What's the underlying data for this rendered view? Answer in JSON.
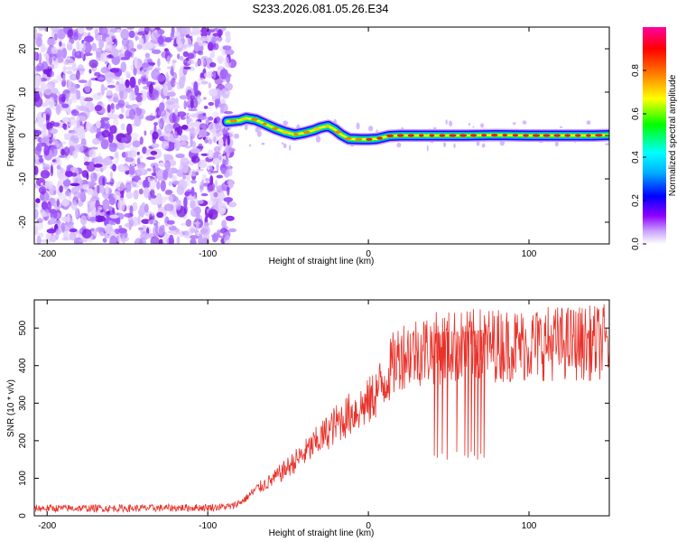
{
  "title": "S233.2026.081.05.26.E34",
  "chart_data": [
    {
      "type": "heatmap",
      "title": "S233.2026.081.05.26.E34",
      "xlabel": "Height of straight line (km)",
      "ylabel": "Frequency (Hz)",
      "xlim": [
        -208,
        150
      ],
      "ylim": [
        -25,
        25
      ],
      "x_ticks": [
        -200,
        -100,
        0,
        100
      ],
      "x_tick_labels": [
        "-200",
        "-100",
        "0",
        "100"
      ],
      "y_ticks": [
        -20,
        -10,
        0,
        10,
        20
      ],
      "y_tick_labels": [
        "-20",
        "-10",
        "0",
        "10",
        "20"
      ],
      "noise_region_x": [
        -208,
        -88
      ],
      "ridge_line": {
        "x": [
          -88,
          -80,
          -76,
          -70,
          -64,
          -58,
          -52,
          -46,
          -40,
          -34,
          -30,
          -25,
          -21,
          -17,
          -12,
          -5,
          0,
          5,
          13,
          20,
          40,
          60,
          80,
          100,
          120,
          140,
          150
        ],
        "y": [
          3.2,
          3.5,
          4.0,
          3.6,
          2.6,
          1.6,
          0.8,
          0.2,
          0.6,
          1.2,
          1.8,
          2.2,
          1.4,
          0.2,
          -0.8,
          -0.9,
          -0.9,
          -0.8,
          -0.1,
          0.0,
          0.0,
          0.0,
          0.1,
          0.0,
          0.0,
          0.0,
          0.1
        ]
      },
      "colorbar": {
        "label": "Normalized spectral amplitude",
        "range": [
          0,
          1
        ],
        "ticks": [
          0.0,
          0.2,
          0.4,
          0.6,
          0.8
        ],
        "tick_labels": [
          "0.0",
          "0.2",
          "0.4",
          "0.6",
          "0.8"
        ],
        "colors": [
          "#ffffff",
          "#8e00ff",
          "#0000ff",
          "#00ffff",
          "#00ff00",
          "#ffff00",
          "#ff8000",
          "#ff0000",
          "#ff00a0"
        ]
      }
    },
    {
      "type": "line",
      "title": "",
      "xlabel": "Height of straight line (km)",
      "ylabel": "SNR (10 * v/v)",
      "xlim": [
        -208,
        150
      ],
      "ylim": [
        0,
        575
      ],
      "x_ticks": [
        -200,
        -100,
        0,
        100
      ],
      "x_tick_labels": [
        "-200",
        "-100",
        "0",
        "100"
      ],
      "y_ticks": [
        0,
        100,
        200,
        300,
        400,
        500
      ],
      "y_tick_labels": [
        "0",
        "100",
        "200",
        "300",
        "400",
        "500"
      ],
      "series": [
        {
          "name": "SNR",
          "color": "#e8322a",
          "x": [
            -208,
            -180,
            -150,
            -120,
            -100,
            -85,
            -78,
            -70,
            -60,
            -50,
            -40,
            -30,
            -20,
            -10,
            0,
            10,
            15,
            20,
            30,
            40,
            50,
            60,
            70,
            80,
            90,
            100,
            110,
            120,
            130,
            140,
            150
          ],
          "y": [
            20,
            20,
            20,
            21,
            22,
            25,
            40,
            70,
            95,
            130,
            165,
            205,
            245,
            275,
            300,
            360,
            400,
            430,
            440,
            445,
            450,
            450,
            455,
            455,
            455,
            455,
            460,
            460,
            460,
            460,
            465
          ]
        }
      ],
      "dropouts": [
        {
          "x": 41,
          "y": 160
        },
        {
          "x": 43,
          "y": 155
        },
        {
          "x": 46,
          "y": 165
        },
        {
          "x": 49,
          "y": 150
        },
        {
          "x": 55,
          "y": 170
        },
        {
          "x": 60,
          "y": 160
        },
        {
          "x": 62,
          "y": 155
        },
        {
          "x": 64,
          "y": 170
        },
        {
          "x": 66,
          "y": 160
        },
        {
          "x": 68,
          "y": 150
        },
        {
          "x": 70,
          "y": 165
        },
        {
          "x": 72,
          "y": 155
        }
      ]
    }
  ]
}
